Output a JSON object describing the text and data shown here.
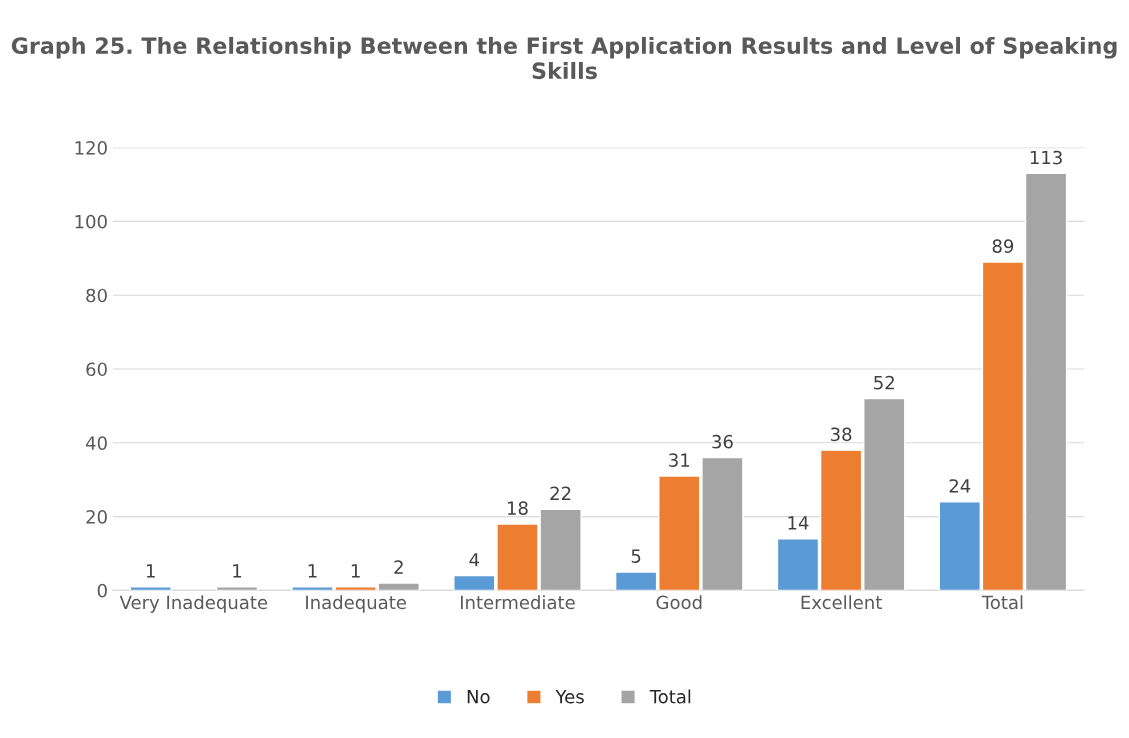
{
  "chart_data": {
    "type": "bar",
    "title": "Graph 25. The Relationship Between the First Application Results and Level of Speaking Skills",
    "categories": [
      "Very Inadequate",
      "Inadequate",
      "Intermediate",
      "Good",
      "Excellent",
      "Total"
    ],
    "series": [
      {
        "name": "No",
        "color": "#5b9bd5",
        "values": [
          1,
          1,
          4,
          5,
          14,
          24
        ]
      },
      {
        "name": "Yes",
        "color": "#ed7d31",
        "values": [
          null,
          1,
          18,
          31,
          38,
          89
        ]
      },
      {
        "name": "Total",
        "color": "#a5a5a5",
        "values": [
          1,
          2,
          22,
          36,
          52,
          113
        ]
      }
    ],
    "ylim": [
      0,
      120
    ],
    "yticks": [
      0,
      20,
      40,
      60,
      80,
      100,
      120
    ],
    "grid": "y",
    "legend": "bottom",
    "data_labels": true
  }
}
